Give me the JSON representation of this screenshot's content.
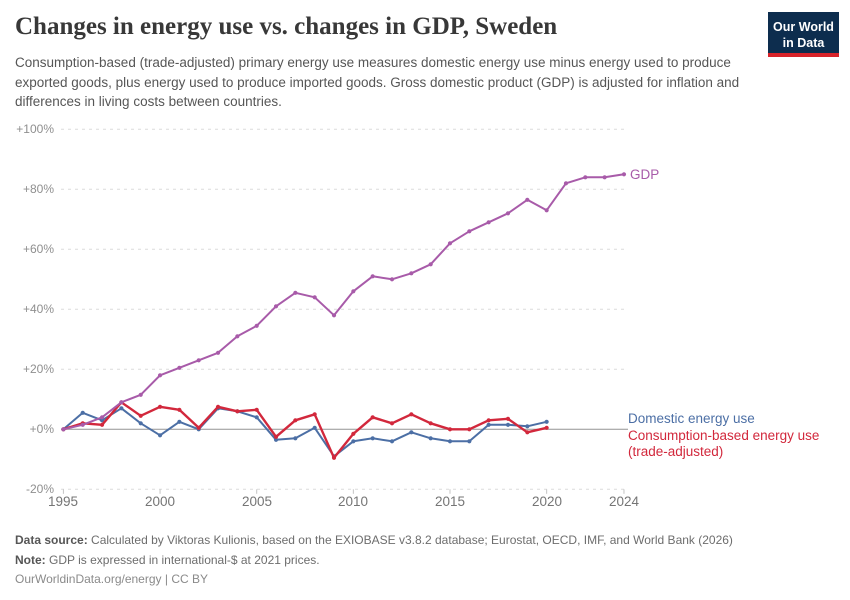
{
  "header": {
    "title": "Changes in energy use vs. changes in GDP, Sweden",
    "subtitle": "Consumption-based (trade-adjusted) primary energy use measures domestic energy use minus energy used to produce exported goods, plus energy used to produce imported goods. Gross domestic product (GDP) is adjusted for inflation and differences in living costs between countries.",
    "logo": {
      "line1": "Our World",
      "line2": "in Data"
    }
  },
  "chart_data": {
    "type": "line",
    "title": "Changes in energy use vs. changes in GDP, Sweden",
    "xlabel": "",
    "ylabel": "",
    "xlim": [
      1995,
      2024
    ],
    "ylim": [
      -20,
      100
    ],
    "grid": "horizontal-dashed",
    "legend_position": "right-end-labels",
    "y_ticks": [
      {
        "label": "+100%",
        "value": 100
      },
      {
        "label": "+80%",
        "value": 80
      },
      {
        "label": "+60%",
        "value": 60
      },
      {
        "label": "+40%",
        "value": 40
      },
      {
        "label": "+20%",
        "value": 20
      },
      {
        "label": "+0%",
        "value": 0
      },
      {
        "label": "-20%",
        "value": -20
      }
    ],
    "x_ticks": [
      {
        "label": "1995",
        "value": 1995
      },
      {
        "label": "2000",
        "value": 2000
      },
      {
        "label": "2005",
        "value": 2005
      },
      {
        "label": "2010",
        "value": 2010
      },
      {
        "label": "2015",
        "value": 2015
      },
      {
        "label": "2020",
        "value": 2020
      },
      {
        "label": "2024",
        "value": 2024
      }
    ],
    "series": [
      {
        "name": "GDP",
        "label_lines": [
          "GDP"
        ],
        "color": "#a85ba9",
        "years": [
          1995,
          1996,
          1997,
          1998,
          1999,
          2000,
          2001,
          2002,
          2003,
          2004,
          2005,
          2006,
          2007,
          2008,
          2009,
          2010,
          2011,
          2012,
          2013,
          2014,
          2015,
          2016,
          2017,
          2018,
          2019,
          2020,
          2021,
          2022,
          2023,
          2024
        ],
        "values": [
          0,
          1.5,
          4,
          9,
          11.5,
          18,
          20.5,
          23,
          25.5,
          31,
          34.5,
          41,
          45.5,
          44,
          38,
          46,
          51,
          50,
          52,
          55,
          62,
          66,
          69,
          72,
          76.5,
          73,
          82,
          84,
          84,
          85
        ]
      },
      {
        "name": "Domestic energy use",
        "label_lines": [
          "Domestic energy use"
        ],
        "color": "#4c6fa5",
        "years": [
          1995,
          1996,
          1997,
          1998,
          1999,
          2000,
          2001,
          2002,
          2003,
          2004,
          2005,
          2006,
          2007,
          2008,
          2009,
          2010,
          2011,
          2012,
          2013,
          2014,
          2015,
          2016,
          2017,
          2018,
          2019,
          2020
        ],
        "values": [
          0,
          5.5,
          3,
          7,
          2,
          -2,
          2.5,
          0,
          7,
          6,
          4,
          -3.5,
          -3,
          0.5,
          -9,
          -4,
          -3,
          -4,
          -1,
          -3,
          -4,
          -4,
          1.5,
          1.5,
          1,
          2.5
        ]
      },
      {
        "name": "Consumption-based energy use (trade-adjusted)",
        "label_lines": [
          "Consumption-based energy use",
          "(trade-adjusted)"
        ],
        "color": "#d2283c",
        "years": [
          1995,
          1996,
          1997,
          1998,
          1999,
          2000,
          2001,
          2002,
          2003,
          2004,
          2005,
          2006,
          2007,
          2008,
          2009,
          2010,
          2011,
          2012,
          2013,
          2014,
          2015,
          2016,
          2017,
          2018,
          2019,
          2020
        ],
        "values": [
          0,
          2,
          1.5,
          9,
          4.5,
          7.5,
          6.5,
          0.5,
          7.5,
          6,
          6.5,
          -2.5,
          3,
          5,
          -9.5,
          -1.5,
          4,
          2,
          5,
          2,
          0,
          0,
          3,
          3.5,
          -1,
          0.5
        ]
      }
    ]
  },
  "footer": {
    "source_label": "Data source:",
    "source_text": " Calculated by Viktoras Kulionis, based on the EXIOBASE v3.8.2 database; Eurostat, OECD, IMF, and World Bank (2026)",
    "note_label": "Note:",
    "note_text": " GDP is expressed in international-$ at 2021 prices.",
    "link": "OurWorldinData.org/energy",
    "separator": " | ",
    "license": "CC BY"
  }
}
